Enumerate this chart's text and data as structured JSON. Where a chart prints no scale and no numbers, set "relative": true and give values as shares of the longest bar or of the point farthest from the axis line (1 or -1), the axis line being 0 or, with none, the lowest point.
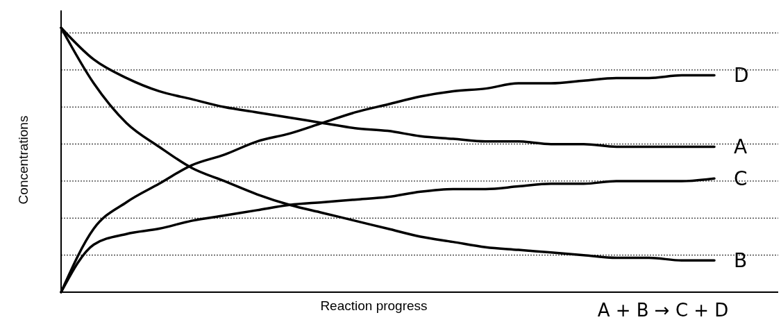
{
  "chart_data": {
    "type": "line",
    "xlabel": "Reaction progress",
    "ylabel": "Concentrations",
    "relative": true,
    "grid": "y",
    "legend": false,
    "marker": "none",
    "line_style": "solid",
    "categories": [
      null,
      null,
      null,
      null,
      null,
      null,
      null,
      null,
      null,
      null,
      null,
      null,
      null,
      null,
      null,
      null,
      null,
      null,
      null,
      null,
      null
    ],
    "series": [
      {
        "name": "A",
        "color": "#000000",
        "values": [
          1.0,
          0.88,
          0.81,
          0.76,
          0.73,
          0.7,
          0.68,
          0.66,
          0.64,
          0.62,
          0.61,
          0.59,
          0.58,
          0.57,
          0.57,
          0.56,
          0.56,
          0.55,
          0.55,
          0.55,
          0.55
        ]
      },
      {
        "name": "B",
        "color": "#000000",
        "values": [
          1.0,
          0.79,
          0.64,
          0.55,
          0.47,
          0.42,
          0.37,
          0.33,
          0.3,
          0.27,
          0.24,
          0.21,
          0.19,
          0.17,
          0.16,
          0.15,
          0.14,
          0.13,
          0.13,
          0.12,
          0.12
        ]
      },
      {
        "name": "C",
        "color": "#000000",
        "values": [
          0,
          0.18,
          0.22,
          0.24,
          0.27,
          0.29,
          0.31,
          0.33,
          0.34,
          0.35,
          0.36,
          0.38,
          0.39,
          0.39,
          0.4,
          0.41,
          0.41,
          0.42,
          0.42,
          0.42,
          0.43
        ]
      },
      {
        "name": "D",
        "color": "#000000",
        "values": [
          0,
          0.24,
          0.34,
          0.41,
          0.48,
          0.52,
          0.57,
          0.6,
          0.64,
          0.68,
          0.71,
          0.74,
          0.76,
          0.77,
          0.79,
          0.79,
          0.8,
          0.81,
          0.81,
          0.82,
          0.82
        ]
      }
    ],
    "annotations": [
      "A + B → C + D"
    ]
  }
}
